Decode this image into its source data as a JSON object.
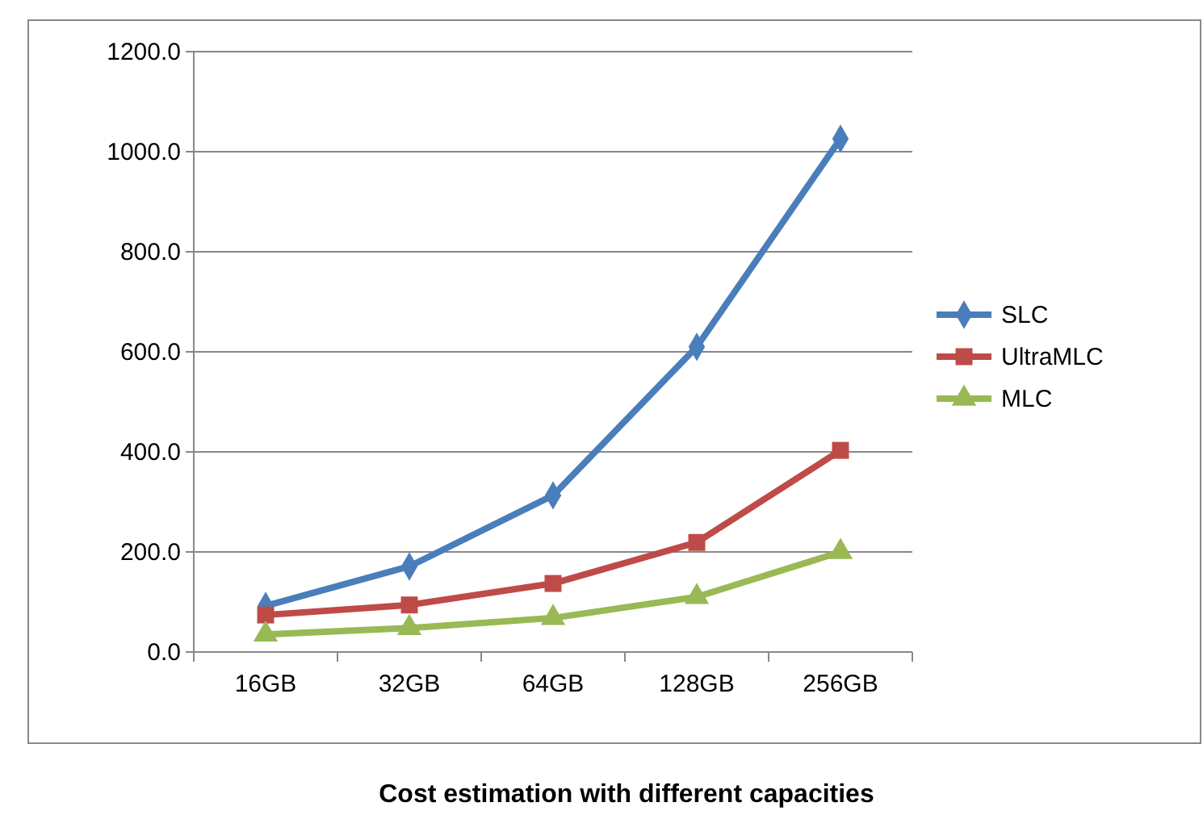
{
  "chart_data": {
    "type": "line",
    "title": "Cost estimation with different capacities",
    "categories": [
      "16GB",
      "32GB",
      "64GB",
      "128GB",
      "256GB"
    ],
    "series": [
      {
        "name": "SLC",
        "color": "#4a7ebb",
        "marker": "diamond",
        "values": [
          92,
          171,
          313,
          610,
          1026
        ]
      },
      {
        "name": "UltraMLC",
        "color": "#be4b48",
        "marker": "square",
        "values": [
          74,
          94,
          137,
          219,
          403
        ]
      },
      {
        "name": "MLC",
        "color": "#98b954",
        "marker": "triangle",
        "values": [
          35,
          48,
          68,
          110,
          200
        ]
      }
    ],
    "ylim": [
      0,
      1200
    ],
    "yticks": [
      {
        "value": 0,
        "label": "0.0"
      },
      {
        "value": 200,
        "label": "200.0"
      },
      {
        "value": 400,
        "label": "400.0"
      },
      {
        "value": 600,
        "label": "600.0"
      },
      {
        "value": 800,
        "label": "800.0"
      },
      {
        "value": 1000,
        "label": "1000.0"
      },
      {
        "value": 1200,
        "label": "1200.0"
      }
    ],
    "grid": "y",
    "legend": "right",
    "line_style": "solid"
  }
}
